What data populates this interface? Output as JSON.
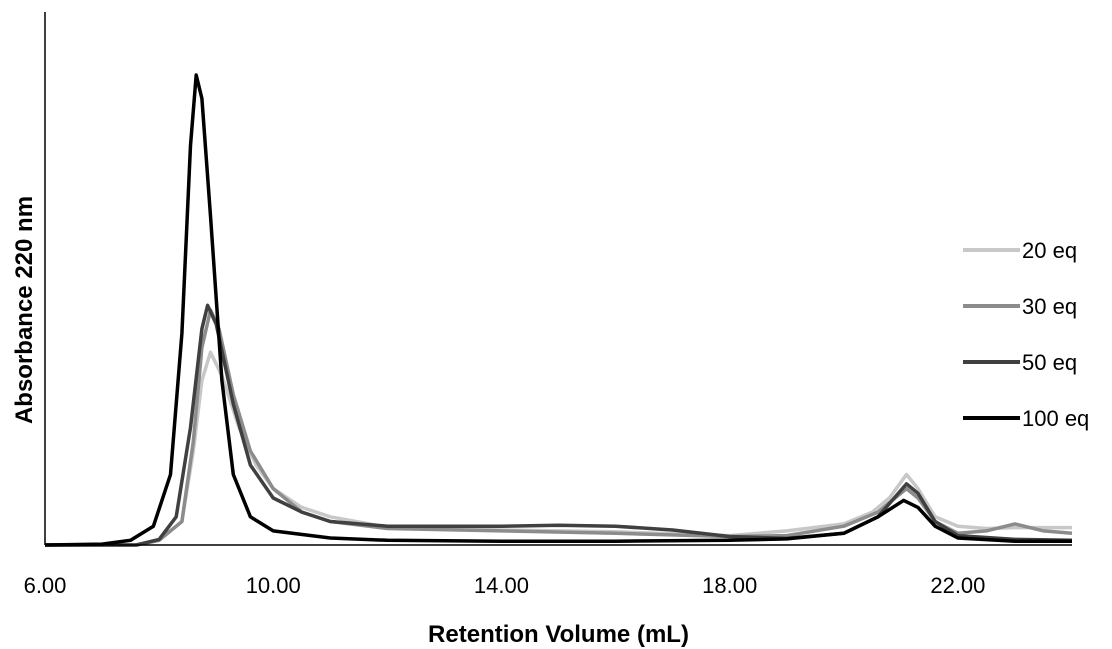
{
  "chart_data": {
    "type": "line",
    "title": "",
    "xlabel": "Retention Volume (mL)",
    "ylabel": "Absorbance 220 nm",
    "xlim": [
      6.0,
      24.0
    ],
    "ylim": [
      0,
      1.0
    ],
    "x_ticks": [
      "6.00",
      "10.00",
      "14.00",
      "18.00",
      "22.00"
    ],
    "x_tick_values": [
      6,
      10,
      14,
      18,
      22
    ],
    "grid": false,
    "legend_position": "right",
    "series": [
      {
        "name": "20 eq",
        "color": "#c8c8c8",
        "points": [
          [
            6.0,
            0
          ],
          [
            7.6,
            0
          ],
          [
            8.0,
            0.01
          ],
          [
            8.4,
            0.05
          ],
          [
            8.6,
            0.2
          ],
          [
            8.75,
            0.35
          ],
          [
            8.9,
            0.41
          ],
          [
            9.1,
            0.36
          ],
          [
            9.4,
            0.25
          ],
          [
            9.7,
            0.17
          ],
          [
            10.0,
            0.12
          ],
          [
            10.5,
            0.08
          ],
          [
            11.0,
            0.06
          ],
          [
            12.0,
            0.038
          ],
          [
            14.0,
            0.032
          ],
          [
            16.0,
            0.028
          ],
          [
            18.0,
            0.02
          ],
          [
            19.0,
            0.03
          ],
          [
            20.0,
            0.045
          ],
          [
            20.5,
            0.07
          ],
          [
            20.8,
            0.1
          ],
          [
            21.1,
            0.15
          ],
          [
            21.3,
            0.12
          ],
          [
            21.6,
            0.06
          ],
          [
            22.0,
            0.04
          ],
          [
            22.5,
            0.035
          ],
          [
            23.0,
            0.037
          ],
          [
            24.0,
            0.037
          ]
        ]
      },
      {
        "name": "30 eq",
        "color": "#8c8c8c",
        "points": [
          [
            6.0,
            0
          ],
          [
            7.6,
            0
          ],
          [
            8.0,
            0.01
          ],
          [
            8.4,
            0.05
          ],
          [
            8.6,
            0.22
          ],
          [
            8.75,
            0.42
          ],
          [
            8.9,
            0.5
          ],
          [
            9.05,
            0.46
          ],
          [
            9.3,
            0.32
          ],
          [
            9.6,
            0.2
          ],
          [
            10.0,
            0.12
          ],
          [
            10.5,
            0.07
          ],
          [
            11.0,
            0.05
          ],
          [
            12.0,
            0.035
          ],
          [
            14.0,
            0.03
          ],
          [
            16.0,
            0.025
          ],
          [
            18.0,
            0.018
          ],
          [
            19.0,
            0.02
          ],
          [
            20.0,
            0.04
          ],
          [
            20.6,
            0.07
          ],
          [
            21.1,
            0.12
          ],
          [
            21.3,
            0.1
          ],
          [
            21.6,
            0.05
          ],
          [
            22.0,
            0.025
          ],
          [
            22.5,
            0.03
          ],
          [
            23.0,
            0.045
          ],
          [
            23.5,
            0.03
          ],
          [
            24.0,
            0.025
          ]
        ]
      },
      {
        "name": "50 eq",
        "color": "#404040",
        "points": [
          [
            6.0,
            0
          ],
          [
            7.6,
            0
          ],
          [
            8.0,
            0.012
          ],
          [
            8.3,
            0.06
          ],
          [
            8.55,
            0.25
          ],
          [
            8.75,
            0.46
          ],
          [
            8.85,
            0.51
          ],
          [
            9.0,
            0.47
          ],
          [
            9.3,
            0.3
          ],
          [
            9.6,
            0.17
          ],
          [
            10.0,
            0.1
          ],
          [
            10.5,
            0.07
          ],
          [
            11.0,
            0.05
          ],
          [
            12.0,
            0.04
          ],
          [
            14.0,
            0.04
          ],
          [
            15.0,
            0.042
          ],
          [
            16.0,
            0.04
          ],
          [
            17.0,
            0.032
          ],
          [
            18.0,
            0.018
          ],
          [
            19.0,
            0.014
          ],
          [
            20.0,
            0.025
          ],
          [
            20.6,
            0.06
          ],
          [
            21.1,
            0.13
          ],
          [
            21.3,
            0.11
          ],
          [
            21.6,
            0.05
          ],
          [
            22.0,
            0.02
          ],
          [
            23.0,
            0.012
          ],
          [
            24.0,
            0.01
          ]
        ]
      },
      {
        "name": "100 eq",
        "color": "#000000",
        "points": [
          [
            6.0,
            0
          ],
          [
            7.0,
            0.002
          ],
          [
            7.5,
            0.01
          ],
          [
            7.9,
            0.04
          ],
          [
            8.2,
            0.15
          ],
          [
            8.4,
            0.45
          ],
          [
            8.55,
            0.85
          ],
          [
            8.65,
            1.0
          ],
          [
            8.75,
            0.95
          ],
          [
            8.9,
            0.7
          ],
          [
            9.1,
            0.35
          ],
          [
            9.3,
            0.15
          ],
          [
            9.6,
            0.06
          ],
          [
            10.0,
            0.03
          ],
          [
            11.0,
            0.015
          ],
          [
            12.0,
            0.01
          ],
          [
            14.0,
            0.008
          ],
          [
            16.0,
            0.008
          ],
          [
            18.0,
            0.01
          ],
          [
            19.0,
            0.013
          ],
          [
            20.0,
            0.025
          ],
          [
            20.6,
            0.06
          ],
          [
            21.05,
            0.095
          ],
          [
            21.3,
            0.08
          ],
          [
            21.6,
            0.04
          ],
          [
            22.0,
            0.015
          ],
          [
            23.0,
            0.008
          ],
          [
            24.0,
            0.008
          ]
        ]
      }
    ]
  }
}
